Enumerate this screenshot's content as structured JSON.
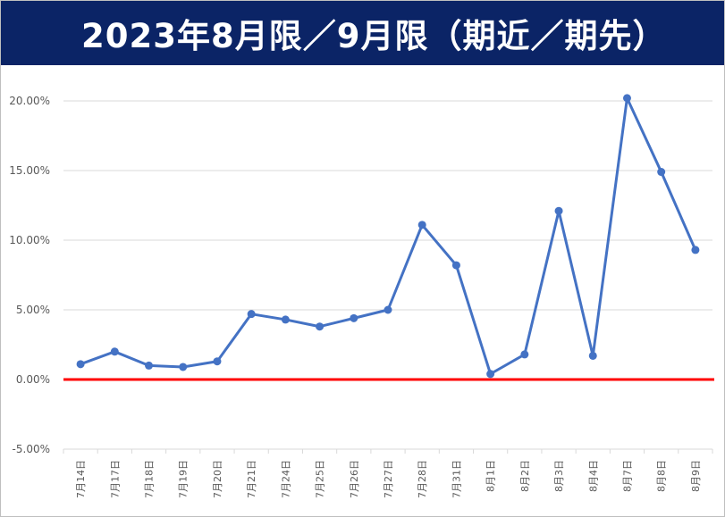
{
  "title": "2023年8月限／9月限（期近／期先）",
  "colors": {
    "header_bg": "#0b2466",
    "series": "#4472c4",
    "zero_line": "#ff0000",
    "grid": "#d9d9d9"
  },
  "chart_data": {
    "type": "line",
    "title": "2023年8月限／9月限（期近／期先）",
    "xlabel": "",
    "ylabel": "",
    "ylim": [
      -0.05,
      0.2
    ],
    "yticks": [
      -0.05,
      0.0,
      0.05,
      0.1,
      0.15,
      0.2
    ],
    "ytick_labels": [
      "-5.00%",
      "0.00%",
      "5.00%",
      "10.00%",
      "15.00%",
      "20.00%"
    ],
    "grid": true,
    "legend": "none",
    "categories": [
      "7月14日",
      "7月17日",
      "7月18日",
      "7月19日",
      "7月20日",
      "7月21日",
      "7月24日",
      "7月25日",
      "7月26日",
      "7月27日",
      "7月28日",
      "7月31日",
      "8月1日",
      "8月2日",
      "8月3日",
      "8月4日",
      "8月7日",
      "8月8日",
      "8月9日"
    ],
    "series": [
      {
        "values": [
          0.011,
          0.02,
          0.01,
          0.009,
          0.013,
          0.047,
          0.043,
          0.038,
          0.044,
          0.05,
          0.111,
          0.082,
          0.004,
          0.018,
          0.121,
          0.017,
          0.202,
          0.149,
          0.093
        ]
      }
    ]
  }
}
